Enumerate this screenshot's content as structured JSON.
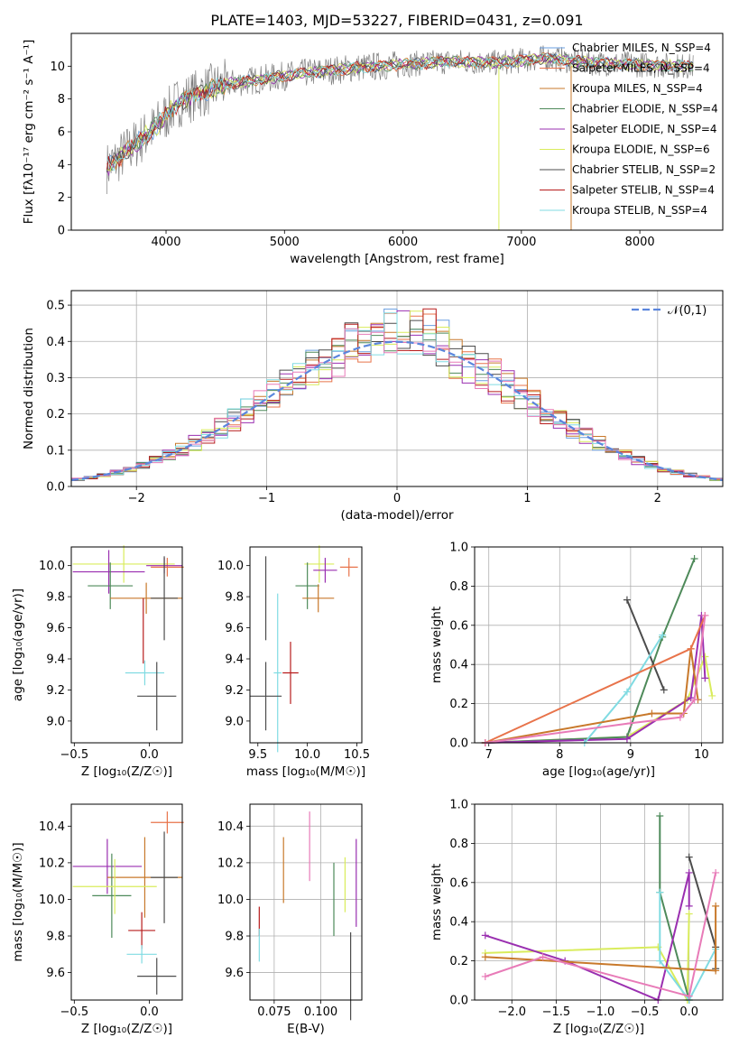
{
  "figure_title": "PLATE=1403, MJD=53227, FIBERID=0431, z=0.091",
  "series_colors": {
    "chabrier_miles": "#6a9fe0",
    "salpeter_miles": "#e8734a",
    "kroupa_miles": "#c8792b",
    "chabrier_elodie": "#4e8a5a",
    "salpeter_elodie": "#9a2fb0",
    "kroupa_elodie": "#d9ec5c",
    "chabrier_stelib": "#4c4c4c",
    "salpeter_stelib": "#b71c1c",
    "kroupa_stelib": "#80dbe2",
    "data": "#7f7f7f"
  },
  "chart_data": [
    {
      "id": "spectrum",
      "type": "line",
      "xlabel": "wavelength [Angstrom, rest frame]",
      "ylabel": "Flux [fλ10⁻¹⁷ erg cm⁻² s⁻¹ A⁻¹]",
      "xlim": [
        3200,
        8700
      ],
      "ylim": [
        0,
        12
      ],
      "xticks": [
        "4000",
        "5000",
        "6000",
        "7000",
        "8000"
      ],
      "yticks": [
        "0",
        "2",
        "4",
        "6",
        "8",
        "10"
      ],
      "legend_position": "right",
      "legend": [
        {
          "label": "Chabrier MILES, N_SSP=4",
          "color_key": "chabrier_miles"
        },
        {
          "label": "Salpeter MILES, N_SSP=4",
          "color_key": "salpeter_miles"
        },
        {
          "label": "Kroupa MILES, N_SSP=4",
          "color_key": "kroupa_miles"
        },
        {
          "label": "Chabrier ELODIE, N_SSP=4",
          "color_key": "chabrier_elodie"
        },
        {
          "label": "Salpeter ELODIE, N_SSP=4",
          "color_key": "salpeter_elodie"
        },
        {
          "label": "Kroupa ELODIE, N_SSP=6",
          "color_key": "kroupa_elodie"
        },
        {
          "label": "Chabrier STELIB, N_SSP=2",
          "color_key": "chabrier_stelib"
        },
        {
          "label": "Salpeter STELIB, N_SSP=4",
          "color_key": "salpeter_stelib"
        },
        {
          "label": "Kroupa STELIB, N_SSP=4",
          "color_key": "kroupa_stelib"
        }
      ],
      "continuum": {
        "x": [
          3500,
          3700,
          3900,
          4100,
          4300,
          4500,
          4800,
          5200,
          5600,
          6000,
          6400,
          6800,
          7200,
          7600,
          8000,
          8400
        ],
        "y": [
          3.8,
          5.0,
          6.2,
          7.8,
          8.4,
          8.9,
          9.2,
          9.6,
          9.9,
          10.1,
          10.3,
          10.2,
          10.5,
          10.2,
          10.1,
          10.0
        ]
      },
      "dropouts": [
        {
          "x": 6810,
          "color_key": "kroupa_elodie"
        },
        {
          "x": 7420,
          "color_key": "kroupa_miles"
        }
      ]
    },
    {
      "id": "residual_histogram",
      "type": "histogram",
      "xlabel": "(data-model)/error",
      "ylabel": "Normed distribution",
      "xlim": [
        -2.5,
        2.5
      ],
      "ylim": [
        0,
        0.54
      ],
      "xticks": [
        "−2",
        "−1",
        "0",
        "1",
        "2"
      ],
      "yticks": [
        "0.0",
        "0.1",
        "0.2",
        "0.3",
        "0.4",
        "0.5"
      ],
      "bin_width": 0.1,
      "grid": true,
      "reference_curve": {
        "label": "𝒩(0,1)",
        "mean": 0,
        "sigma": 1,
        "style": "dashed",
        "color": "#5b86dd"
      },
      "legend_position": "top-right"
    },
    {
      "id": "age_vs_metallicity",
      "type": "errorbar",
      "xlabel": "Z [log₁₀(Z/Z☉)]",
      "ylabel": "age  [log₁₀(age/yr)]",
      "xlim": [
        -0.52,
        0.22
      ],
      "ylim": [
        8.86,
        10.12
      ],
      "xticks": [
        "−0.5",
        "0.0"
      ],
      "xtick_values": [
        -0.5,
        0.0
      ],
      "yticks": [
        "9.0",
        "9.2",
        "9.4",
        "9.6",
        "9.8",
        "10.0"
      ],
      "ytick_values": [
        9.0,
        9.2,
        9.4,
        9.6,
        9.8,
        10.0
      ],
      "points": [
        {
          "x": -0.17,
          "y": 10.01,
          "xerr": 0.34,
          "yerr": 0.12,
          "color_key": "kroupa_elodie"
        },
        {
          "x": 0.12,
          "y": 9.99,
          "xerr": 0.11,
          "yerr": 0.06,
          "color_key": "salpeter_miles"
        },
        {
          "x": 0.1,
          "y": 10.0,
          "xerr": 0.12,
          "yerr": 0.05,
          "color_key": "salpeter_elodie"
        },
        {
          "x": -0.27,
          "y": 9.96,
          "xerr": 0.24,
          "yerr": 0.14,
          "color_key": "salpeter_elodie"
        },
        {
          "x": -0.26,
          "y": 9.87,
          "xerr": 0.15,
          "yerr": 0.15,
          "color_key": "chabrier_elodie"
        },
        {
          "x": -0.02,
          "y": 9.79,
          "xerr": 0.24,
          "yerr": 0.1,
          "color_key": "kroupa_miles"
        },
        {
          "x": 0.1,
          "y": 9.79,
          "xerr": 0.09,
          "yerr": 0.27,
          "color_key": "chabrier_stelib"
        },
        {
          "x": -0.04,
          "y": 9.58,
          "xerr": 0.0,
          "yerr": 0.21,
          "color_key": "salpeter_stelib"
        },
        {
          "x": -0.03,
          "y": 9.31,
          "xerr": 0.13,
          "yerr": 0.08,
          "color_key": "kroupa_stelib"
        },
        {
          "x": 0.05,
          "y": 9.16,
          "xerr": 0.13,
          "yerr": 0.22,
          "color_key": "chabrier_stelib"
        }
      ]
    },
    {
      "id": "age_vs_mass",
      "type": "errorbar",
      "xlabel": "mass [log₁₀(M/M☉)]",
      "ylabel": "",
      "xlim": [
        9.42,
        10.55
      ],
      "ylim": [
        8.86,
        10.12
      ],
      "xticks": [
        "9.5",
        "10.0",
        "10.5"
      ],
      "xtick_values": [
        9.5,
        10.0,
        10.5
      ],
      "yticks": [
        "9.0",
        "9.2",
        "9.4",
        "9.6",
        "9.8",
        "10.0"
      ],
      "ytick_values": [
        9.0,
        9.2,
        9.4,
        9.6,
        9.8,
        10.0
      ],
      "points": [
        {
          "x": 10.12,
          "y": 10.01,
          "xerr": 0.15,
          "yerr": 0.12,
          "color_key": "kroupa_elodie"
        },
        {
          "x": 10.42,
          "y": 9.99,
          "xerr": 0.09,
          "yerr": 0.06,
          "color_key": "salpeter_miles"
        },
        {
          "x": 10.18,
          "y": 9.97,
          "xerr": 0.12,
          "yerr": 0.08,
          "color_key": "salpeter_elodie"
        },
        {
          "x": 10.0,
          "y": 9.87,
          "xerr": 0.12,
          "yerr": 0.15,
          "color_key": "chabrier_elodie"
        },
        {
          "x": 10.11,
          "y": 9.79,
          "xerr": 0.16,
          "yerr": 0.09,
          "color_key": "kroupa_miles"
        },
        {
          "x": 9.58,
          "y": 9.79,
          "xerr": 0.0,
          "yerr": 0.27,
          "color_key": "chabrier_stelib"
        },
        {
          "x": 9.83,
          "y": 9.31,
          "xerr": 0.08,
          "yerr": 0.2,
          "color_key": "salpeter_stelib"
        },
        {
          "x": 9.7,
          "y": 9.31,
          "xerr": 0.04,
          "yerr": 0.51,
          "color_key": "kroupa_stelib"
        },
        {
          "x": 9.58,
          "y": 9.16,
          "xerr": 0.16,
          "yerr": 0.22,
          "color_key": "chabrier_stelib"
        }
      ]
    },
    {
      "id": "mass_weight_vs_age",
      "type": "line",
      "xlabel": "age  [log₁₀(age/yr)]",
      "ylabel": "mass weight",
      "xlim": [
        6.8,
        10.3
      ],
      "ylim": [
        0,
        1.0
      ],
      "xticks": [
        "7",
        "8",
        "9",
        "10"
      ],
      "xtick_values": [
        7,
        8,
        9,
        10
      ],
      "yticks": [
        "0.0",
        "0.2",
        "0.4",
        "0.6",
        "0.8",
        "1.0"
      ],
      "ytick_values": [
        0,
        0.2,
        0.4,
        0.6,
        0.8,
        1.0
      ],
      "grid": true,
      "series": [
        {
          "color_key": "kroupa_elodie",
          "x": [
            6.95,
            8.95,
            9.8,
            10.05,
            10.15
          ],
          "y": [
            0.0,
            0.03,
            0.22,
            0.44,
            0.24
          ]
        },
        {
          "color_key": "chabrier_elodie",
          "x": [
            6.95,
            8.95,
            9.45,
            9.9
          ],
          "y": [
            0.0,
            0.03,
            0.54,
            0.94
          ]
        },
        {
          "color_key": "salpeter_elodie",
          "x": [
            6.95,
            8.95,
            9.85,
            10.0,
            10.05
          ],
          "y": [
            0.0,
            0.02,
            0.23,
            0.65,
            0.33
          ]
        },
        {
          "color_key": "chabrier_stelib",
          "x": [
            8.95,
            9.47
          ],
          "y": [
            0.73,
            0.27
          ]
        },
        {
          "color_key": "kroupa_stelib",
          "x": [
            8.35,
            8.95,
            9.45
          ],
          "y": [
            0.0,
            0.26,
            0.55
          ]
        },
        {
          "color_key": "kroupa_miles",
          "x": [
            6.95,
            9.3,
            9.75,
            9.85,
            9.95
          ],
          "y": [
            0.0,
            0.15,
            0.15,
            0.48,
            0.22
          ]
        },
        {
          "color_key": "salpeter_miles",
          "x": [
            6.95,
            9.85,
            10.05
          ],
          "y": [
            0.0,
            0.48,
            0.65
          ]
        },
        {
          "color_key": "pink",
          "x": [
            6.95,
            9.0,
            9.7,
            9.9,
            10.05
          ],
          "y": [
            0.0,
            0.1,
            0.13,
            0.22,
            0.65
          ]
        }
      ]
    },
    {
      "id": "mass_vs_metallicity",
      "type": "errorbar",
      "xlabel": "Z [log₁₀(Z/Z☉)]",
      "ylabel": "mass [log₁₀(M/M☉)]",
      "xlim": [
        -0.52,
        0.22
      ],
      "ylim": [
        9.45,
        10.52
      ],
      "xticks": [
        "−0.5",
        "0.0"
      ],
      "xtick_values": [
        -0.5,
        0.0
      ],
      "yticks": [
        "9.6",
        "9.8",
        "10.0",
        "10.2",
        "10.4"
      ],
      "ytick_values": [
        9.6,
        9.8,
        10.0,
        10.2,
        10.4
      ],
      "points": [
        {
          "x": 0.12,
          "y": 10.42,
          "xerr": 0.11,
          "yerr": 0.06,
          "color_key": "salpeter_miles"
        },
        {
          "x": -0.28,
          "y": 10.18,
          "xerr": 0.23,
          "yerr": 0.15,
          "color_key": "salpeter_elodie"
        },
        {
          "x": -0.03,
          "y": 10.12,
          "xerr": 0.25,
          "yerr": 0.22,
          "color_key": "kroupa_miles"
        },
        {
          "x": -0.25,
          "y": 10.02,
          "xerr": 0.13,
          "yerr": 0.23,
          "color_key": "chabrier_elodie"
        },
        {
          "x": -0.23,
          "y": 10.07,
          "xerr": 0.28,
          "yerr": 0.15,
          "color_key": "kroupa_elodie"
        },
        {
          "x": 0.1,
          "y": 10.12,
          "xerr": 0.09,
          "yerr": 0.25,
          "color_key": "chabrier_stelib"
        },
        {
          "x": -0.05,
          "y": 9.83,
          "xerr": 0.09,
          "yerr": 0.1,
          "color_key": "salpeter_stelib"
        },
        {
          "x": -0.05,
          "y": 9.7,
          "xerr": 0.1,
          "yerr": 0.05,
          "color_key": "kroupa_stelib"
        },
        {
          "x": 0.05,
          "y": 9.58,
          "xerr": 0.13,
          "yerr": 0.1,
          "color_key": "chabrier_stelib"
        }
      ]
    },
    {
      "id": "mass_vs_ebv",
      "type": "errorbar",
      "xlabel": "E(B-V)",
      "ylabel": "",
      "xlim": [
        0.062,
        0.122
      ],
      "ylim": [
        9.45,
        10.52
      ],
      "xticks": [
        "0.075",
        "0.100"
      ],
      "xtick_values": [
        0.075,
        0.1
      ],
      "yticks": [
        "9.6",
        "9.8",
        "10.0",
        "10.2",
        "10.4"
      ],
      "ytick_values": [
        9.6,
        9.8,
        10.0,
        10.2,
        10.4
      ],
      "grid": true,
      "points": [
        {
          "x": 0.067,
          "y": 9.88,
          "xerr": 0,
          "yerr": 0.08,
          "color_key": "salpeter_stelib"
        },
        {
          "x": 0.067,
          "y": 9.75,
          "xerr": 0,
          "yerr": 0.09,
          "color_key": "kroupa_stelib"
        },
        {
          "x": 0.08,
          "y": 10.16,
          "xerr": 0,
          "yerr": 0.18,
          "color_key": "kroupa_miles"
        },
        {
          "x": 0.094,
          "y": 10.29,
          "xerr": 0,
          "yerr": 0.19,
          "color_key": "pink"
        },
        {
          "x": 0.107,
          "y": 10.0,
          "xerr": 0,
          "yerr": 0.2,
          "color_key": "chabrier_elodie"
        },
        {
          "x": 0.113,
          "y": 10.08,
          "xerr": 0,
          "yerr": 0.15,
          "color_key": "kroupa_elodie"
        },
        {
          "x": 0.116,
          "y": 9.58,
          "xerr": 0,
          "yerr": 0.24,
          "color_key": "chabrier_stelib"
        },
        {
          "x": 0.119,
          "y": 10.09,
          "xerr": 0,
          "yerr": 0.24,
          "color_key": "salpeter_elodie"
        }
      ]
    },
    {
      "id": "mass_weight_vs_metallicity",
      "type": "line",
      "xlabel": "Z [log₁₀(Z/Z☉)]",
      "ylabel": "mass weight",
      "xlim": [
        -2.42,
        0.38
      ],
      "ylim": [
        0,
        1.0
      ],
      "xticks": [
        "−2.0",
        "−1.5",
        "−1.0",
        "−0.5",
        "0.0"
      ],
      "xtick_values": [
        -2.0,
        -1.5,
        -1.0,
        -0.5,
        0.0
      ],
      "yticks": [
        "0.0",
        "0.2",
        "0.4",
        "0.6",
        "0.8",
        "1.0"
      ],
      "ytick_values": [
        0,
        0.2,
        0.4,
        0.6,
        0.8,
        1.0
      ],
      "grid": true,
      "series": [
        {
          "color_key": "kroupa_elodie",
          "x": [
            -2.3,
            -0.35,
            -0.02,
            0.0
          ],
          "y": [
            0.24,
            0.27,
            0.0,
            0.44
          ]
        },
        {
          "color_key": "chabrier_elodie",
          "x": [
            -0.33,
            -0.33,
            0.0
          ],
          "y": [
            0.94,
            0.55,
            0.0
          ]
        },
        {
          "color_key": "salpeter_elodie",
          "x": [
            -2.3,
            -1.4,
            -0.35,
            0.0,
            0.0
          ],
          "y": [
            0.33,
            0.2,
            0.0,
            0.65,
            0.48
          ]
        },
        {
          "color_key": "chabrier_stelib",
          "x": [
            0.0,
            0.3,
            0.3
          ],
          "y": [
            0.73,
            0.27,
            0.16
          ]
        },
        {
          "color_key": "kroupa_stelib",
          "x": [
            -0.33,
            -0.33,
            0.0,
            0.3
          ],
          "y": [
            0.55,
            0.2,
            0.0,
            0.26
          ]
        },
        {
          "color_key": "kroupa_miles",
          "x": [
            -2.3,
            0.3,
            0.3
          ],
          "y": [
            0.22,
            0.15,
            0.48
          ]
        },
        {
          "color_key": "pink",
          "x": [
            -2.3,
            -1.65,
            0.0,
            0.3
          ],
          "y": [
            0.12,
            0.22,
            0.02,
            0.65
          ]
        }
      ]
    }
  ]
}
